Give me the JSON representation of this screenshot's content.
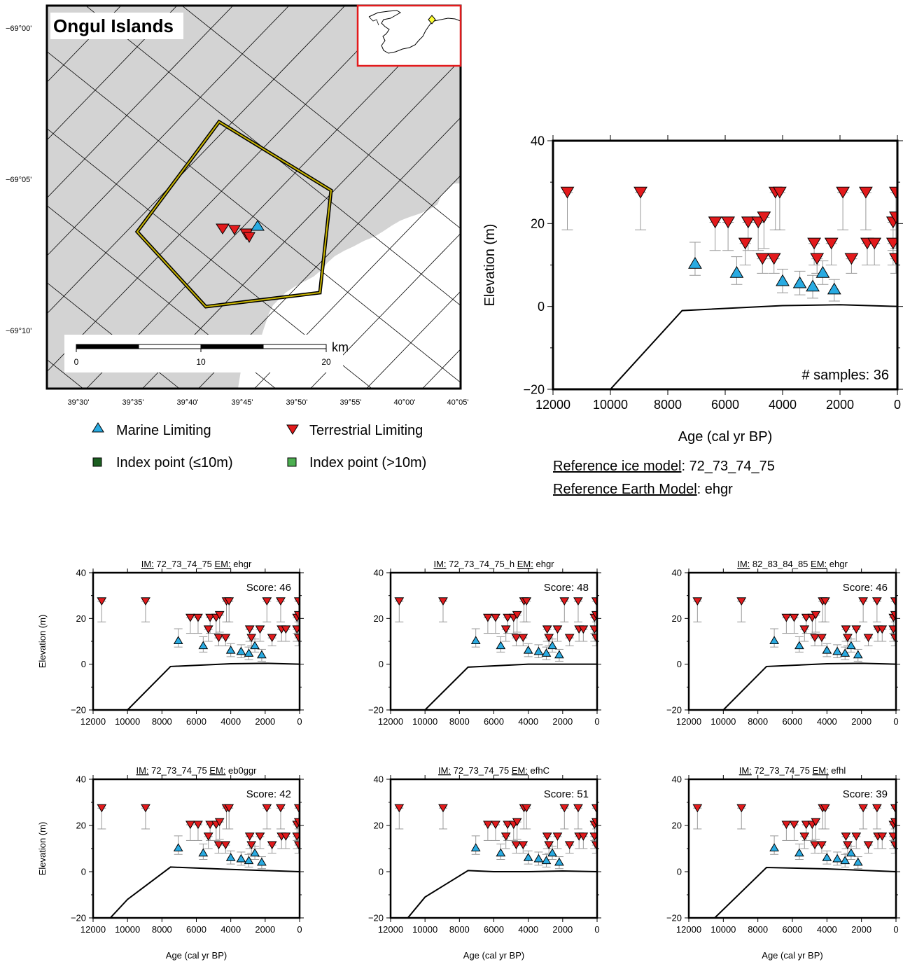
{
  "map": {
    "title": "Ongul Islands",
    "lat_labels": [
      "−69°00'",
      "−69°05'",
      "−69°10'"
    ],
    "lon_labels": [
      "39°30'",
      "39°35'",
      "39°40'",
      "39°45'",
      "39°50'",
      "39°55'",
      "40°00'",
      "40°05'"
    ],
    "scale_labels": [
      "0",
      "10",
      "20"
    ],
    "scale_unit": "km",
    "colors": {
      "land": "#d3d3d3",
      "region_outline": "#c8b400",
      "inset_border": "#e31a1c",
      "inset_marker": "#ffff33"
    }
  },
  "legend": {
    "marine_limiting": "Marine Limiting",
    "terrestrial_limiting": "Terrestrial Limiting",
    "index_point_low": "Index point (≤10m)",
    "index_point_high": "Index point (>10m)",
    "colors": {
      "marine": "#29abe2",
      "terrestrial": "#e31a1c",
      "index_low": "#1b5e20",
      "index_high": "#4caf50"
    }
  },
  "reference": {
    "ice_label": "Reference ice model",
    "ice_value": "72_73_74_75",
    "earth_label": "Reference Earth Model",
    "earth_value": "ehgr"
  },
  "main_chart": {
    "xlabel": "Age (cal yr BP)",
    "ylabel": "Elevation (m)",
    "samples_text": "# samples: 36"
  },
  "small_xlabel": "Age (cal yr BP)",
  "small_ylabel": "Elevation (m)",
  "panels": [
    {
      "im_label": "IM:",
      "im_value": "72_73_74_75",
      "em_label": "EM:",
      "em_value": "ehgr",
      "score": "Score: 46"
    },
    {
      "im_label": "IM:",
      "im_value": "72_73_74_75_h",
      "em_label": "EM:",
      "em_value": "ehgr",
      "score": "Score: 48"
    },
    {
      "im_label": "IM:",
      "im_value": "82_83_84_85",
      "em_label": "EM:",
      "em_value": "ehgr",
      "score": "Score: 46"
    },
    {
      "im_label": "IM:",
      "im_value": "72_73_74_75",
      "em_label": "EM:",
      "em_value": "eb0ggr",
      "score": "Score: 42"
    },
    {
      "im_label": "IM:",
      "im_value": "72_73_74_75",
      "em_label": "EM:",
      "em_value": "efhC",
      "score": "Score: 51"
    },
    {
      "im_label": "IM:",
      "im_value": "72_73_74_75",
      "em_label": "EM:",
      "em_value": "efhl",
      "score": "Score: 39"
    }
  ],
  "chart_data": [
    {
      "type": "scatter",
      "title": "",
      "xlabel": "Age (cal yr BP)",
      "ylabel": "Elevation (m)",
      "xlim": [
        12000,
        0
      ],
      "ylim": [
        -20,
        40
      ],
      "x_ticks": [
        "12000",
        "10000",
        "8000",
        "6000",
        "4000",
        "2000",
        "0"
      ],
      "y_ticks": [
        "−20",
        "0",
        "20",
        "40"
      ],
      "series": [
        {
          "name": "Marine Limiting",
          "marker": "triangle-up",
          "color": "#29abe2",
          "points": [
            [
              7050,
              10.5,
              15.5
            ],
            [
              5600,
              8.3,
              12
            ],
            [
              4000,
              6.3,
              9
            ],
            [
              3400,
              5.8,
              8.5
            ],
            [
              2950,
              5,
              7.5
            ],
            [
              2600,
              8.3,
              11
            ],
            [
              2200,
              4.3,
              6.5
            ]
          ]
        },
        {
          "name": "Terrestrial Limiting",
          "marker": "triangle-down",
          "color": "#e31a1c",
          "points": [
            [
              11500,
              27.5,
              18.5
            ],
            [
              8950,
              27.5,
              18.5
            ],
            [
              6350,
              20.3,
              13.5
            ],
            [
              5900,
              20.3,
              13.5
            ],
            [
              5300,
              15.2,
              10
            ],
            [
              5200,
              20.3,
              13.5
            ],
            [
              4850,
              20.3,
              13.5
            ],
            [
              4650,
              21.5,
              14
            ],
            [
              4700,
              11.5,
              8
            ],
            [
              4300,
              11.5,
              8
            ],
            [
              4250,
              27.5,
              18.5
            ],
            [
              4100,
              27.5,
              18.5
            ],
            [
              2900,
              15.2,
              10
            ],
            [
              2800,
              11.5,
              8
            ],
            [
              2300,
              15.2,
              10
            ],
            [
              1900,
              27.5,
              18.5
            ],
            [
              1600,
              11.5,
              8
            ],
            [
              1100,
              27.5,
              18.5
            ],
            [
              1050,
              15.2,
              10
            ],
            [
              800,
              15.2,
              10
            ],
            [
              150,
              20.3,
              13.5
            ],
            [
              50,
              21.5,
              14
            ],
            [
              150,
              15.2,
              10
            ],
            [
              50,
              27.5,
              18.5
            ],
            [
              50,
              11.5,
              8
            ]
          ]
        }
      ],
      "model_curve": [
        [
          10000,
          -20
        ],
        [
          7500,
          -1
        ],
        [
          4000,
          0.2
        ],
        [
          2000,
          0.4
        ],
        [
          0,
          0
        ]
      ],
      "annotation": "# samples: 36"
    },
    {
      "type": "scatter",
      "panel": 1,
      "xlabel": "Age (cal yr BP)",
      "ylabel": "Elevation (m)",
      "xlim": [
        12000,
        0
      ],
      "ylim": [
        -20,
        40
      ],
      "annotation": "Score: 46",
      "model_curve": [
        [
          10000,
          -20
        ],
        [
          7500,
          -1
        ],
        [
          4000,
          0.2
        ],
        [
          2000,
          0.4
        ],
        [
          0,
          0
        ]
      ]
    },
    {
      "type": "scatter",
      "panel": 2,
      "xlabel": "Age (cal yr BP)",
      "ylabel": "Elevation (m)",
      "xlim": [
        12000,
        0
      ],
      "ylim": [
        -20,
        40
      ],
      "annotation": "Score: 48",
      "model_curve": [
        [
          10000,
          -20
        ],
        [
          7500,
          -1.3
        ],
        [
          4000,
          0
        ],
        [
          2000,
          0
        ],
        [
          0,
          0
        ]
      ]
    },
    {
      "type": "scatter",
      "panel": 3,
      "xlabel": "Age (cal yr BP)",
      "ylabel": "Elevation (m)",
      "xlim": [
        12000,
        0
      ],
      "ylim": [
        -20,
        40
      ],
      "annotation": "Score: 46",
      "model_curve": [
        [
          10000,
          -20
        ],
        [
          7500,
          -1
        ],
        [
          4000,
          0.2
        ],
        [
          2000,
          0.4
        ],
        [
          0,
          0
        ]
      ]
    },
    {
      "type": "scatter",
      "panel": 4,
      "xlabel": "Age (cal yr BP)",
      "ylabel": "Elevation (m)",
      "xlim": [
        12000,
        0
      ],
      "ylim": [
        -20,
        40
      ],
      "annotation": "Score: 42",
      "model_curve": [
        [
          11000,
          -20
        ],
        [
          10000,
          -12
        ],
        [
          7500,
          2
        ],
        [
          4000,
          1
        ],
        [
          2000,
          0.5
        ],
        [
          0,
          0
        ]
      ]
    },
    {
      "type": "scatter",
      "panel": 5,
      "xlabel": "Age (cal yr BP)",
      "ylabel": "Elevation (m)",
      "xlim": [
        12000,
        0
      ],
      "ylim": [
        -20,
        40
      ],
      "annotation": "Score: 51",
      "model_curve": [
        [
          11000,
          -20
        ],
        [
          10000,
          -11
        ],
        [
          7500,
          0.5
        ],
        [
          6000,
          0
        ],
        [
          4000,
          0
        ],
        [
          2000,
          0.3
        ],
        [
          0,
          0
        ]
      ]
    },
    {
      "type": "scatter",
      "panel": 6,
      "xlabel": "Age (cal yr BP)",
      "ylabel": "Elevation (m)",
      "xlim": [
        12000,
        0
      ],
      "ylim": [
        -20,
        40
      ],
      "annotation": "Score: 39",
      "model_curve": [
        [
          10500,
          -20
        ],
        [
          7500,
          1.8
        ],
        [
          4000,
          1.2
        ],
        [
          2000,
          0.6
        ],
        [
          0,
          0
        ]
      ]
    }
  ]
}
